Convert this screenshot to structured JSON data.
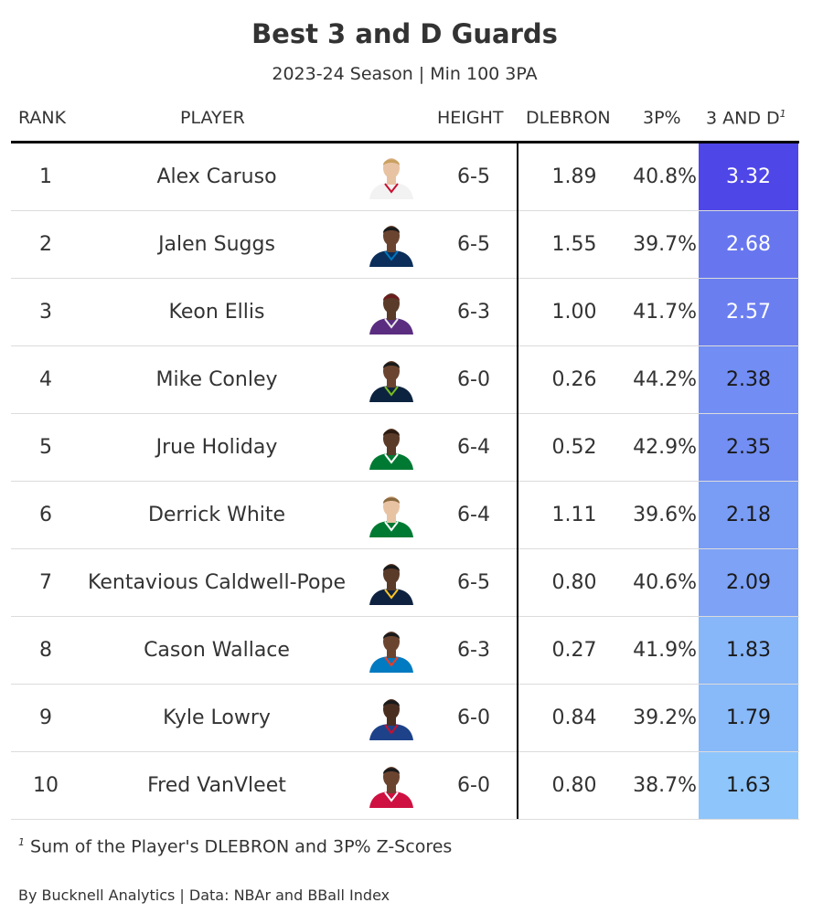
{
  "title": "Best 3 and D Guards",
  "subtitle": "2023-24 Season | Min 100 3PA",
  "columns": {
    "rank": "RANK",
    "player": "PLAYER",
    "height": "HEIGHT",
    "dlebron": "DLEBRON",
    "three_pct": "3P%",
    "three_and_d": "3 AND D",
    "three_and_d_note": "1"
  },
  "footnote": {
    "marker": "1",
    "text": "Sum of the Player's DLEBRON and 3P% Z-Scores"
  },
  "credit": "By Bucknell Analytics | Data: NBAr and BBall Index",
  "colors": {
    "score_max": "#4f46e8",
    "score_min": "#8ec5fb"
  },
  "chart_data": {
    "type": "table",
    "columns": [
      "RANK",
      "PLAYER",
      "HEIGHT",
      "DLEBRON",
      "3P%",
      "3 AND D"
    ],
    "rows": [
      {
        "rank": "1",
        "player": "Alex Caruso",
        "height": "6-5",
        "dlebron": "1.89",
        "three_pct": "40.8%",
        "score": "3.32",
        "value": 3.32,
        "jersey": "#f2f2f2",
        "trim": "#c8102e",
        "skin": "#e8c3a3",
        "hair": "#c9a060"
      },
      {
        "rank": "2",
        "player": "Jalen Suggs",
        "height": "6-5",
        "dlebron": "1.55",
        "three_pct": "39.7%",
        "score": "2.68",
        "value": 2.68,
        "jersey": "#0b2e5a",
        "trim": "#0077c0",
        "skin": "#6b4430",
        "hair": "#1a1a1a"
      },
      {
        "rank": "3",
        "player": "Keon Ellis",
        "height": "6-3",
        "dlebron": "1.00",
        "three_pct": "41.7%",
        "score": "2.57",
        "value": 2.57,
        "jersey": "#5a2d81",
        "trim": "#e8e8e8",
        "skin": "#5a3a28",
        "hair": "#6b1d1d"
      },
      {
        "rank": "4",
        "player": "Mike Conley",
        "height": "6-0",
        "dlebron": "0.26",
        "three_pct": "44.2%",
        "score": "2.38",
        "value": 2.38,
        "jersey": "#0c2340",
        "trim": "#78be20",
        "skin": "#6b4430",
        "hair": "#1a1a1a"
      },
      {
        "rank": "5",
        "player": "Jrue Holiday",
        "height": "6-4",
        "dlebron": "0.52",
        "three_pct": "42.9%",
        "score": "2.35",
        "value": 2.35,
        "jersey": "#007a33",
        "trim": "#ffffff",
        "skin": "#5a3a28",
        "hair": "#2a1a10"
      },
      {
        "rank": "6",
        "player": "Derrick White",
        "height": "6-4",
        "dlebron": "1.11",
        "three_pct": "39.6%",
        "score": "2.18",
        "value": 2.18,
        "jersey": "#007a33",
        "trim": "#ffffff",
        "skin": "#e8c3a3",
        "hair": "#8a6a40"
      },
      {
        "rank": "7",
        "player": "Kentavious Caldwell-Pope",
        "height": "6-5",
        "dlebron": "0.80",
        "three_pct": "40.6%",
        "score": "2.09",
        "value": 2.09,
        "jersey": "#0e2240",
        "trim": "#fec524",
        "skin": "#5a3a28",
        "hair": "#1a1a1a"
      },
      {
        "rank": "8",
        "player": "Cason Wallace",
        "height": "6-3",
        "dlebron": "0.27",
        "three_pct": "41.9%",
        "score": "1.83",
        "value": 1.83,
        "jersey": "#007ac1",
        "trim": "#ef3b24",
        "skin": "#6b4430",
        "hair": "#1a1a1a"
      },
      {
        "rank": "9",
        "player": "Kyle Lowry",
        "height": "6-0",
        "dlebron": "0.84",
        "three_pct": "39.2%",
        "score": "1.79",
        "value": 1.79,
        "jersey": "#1d428a",
        "trim": "#c8102e",
        "skin": "#4a2e20",
        "hair": "#1a1a1a"
      },
      {
        "rank": "10",
        "player": "Fred VanVleet",
        "height": "6-0",
        "dlebron": "0.80",
        "three_pct": "38.7%",
        "score": "1.63",
        "value": 1.63,
        "jersey": "#ce1141",
        "trim": "#ffffff",
        "skin": "#6b4430",
        "hair": "#1a1a1a"
      }
    ]
  }
}
